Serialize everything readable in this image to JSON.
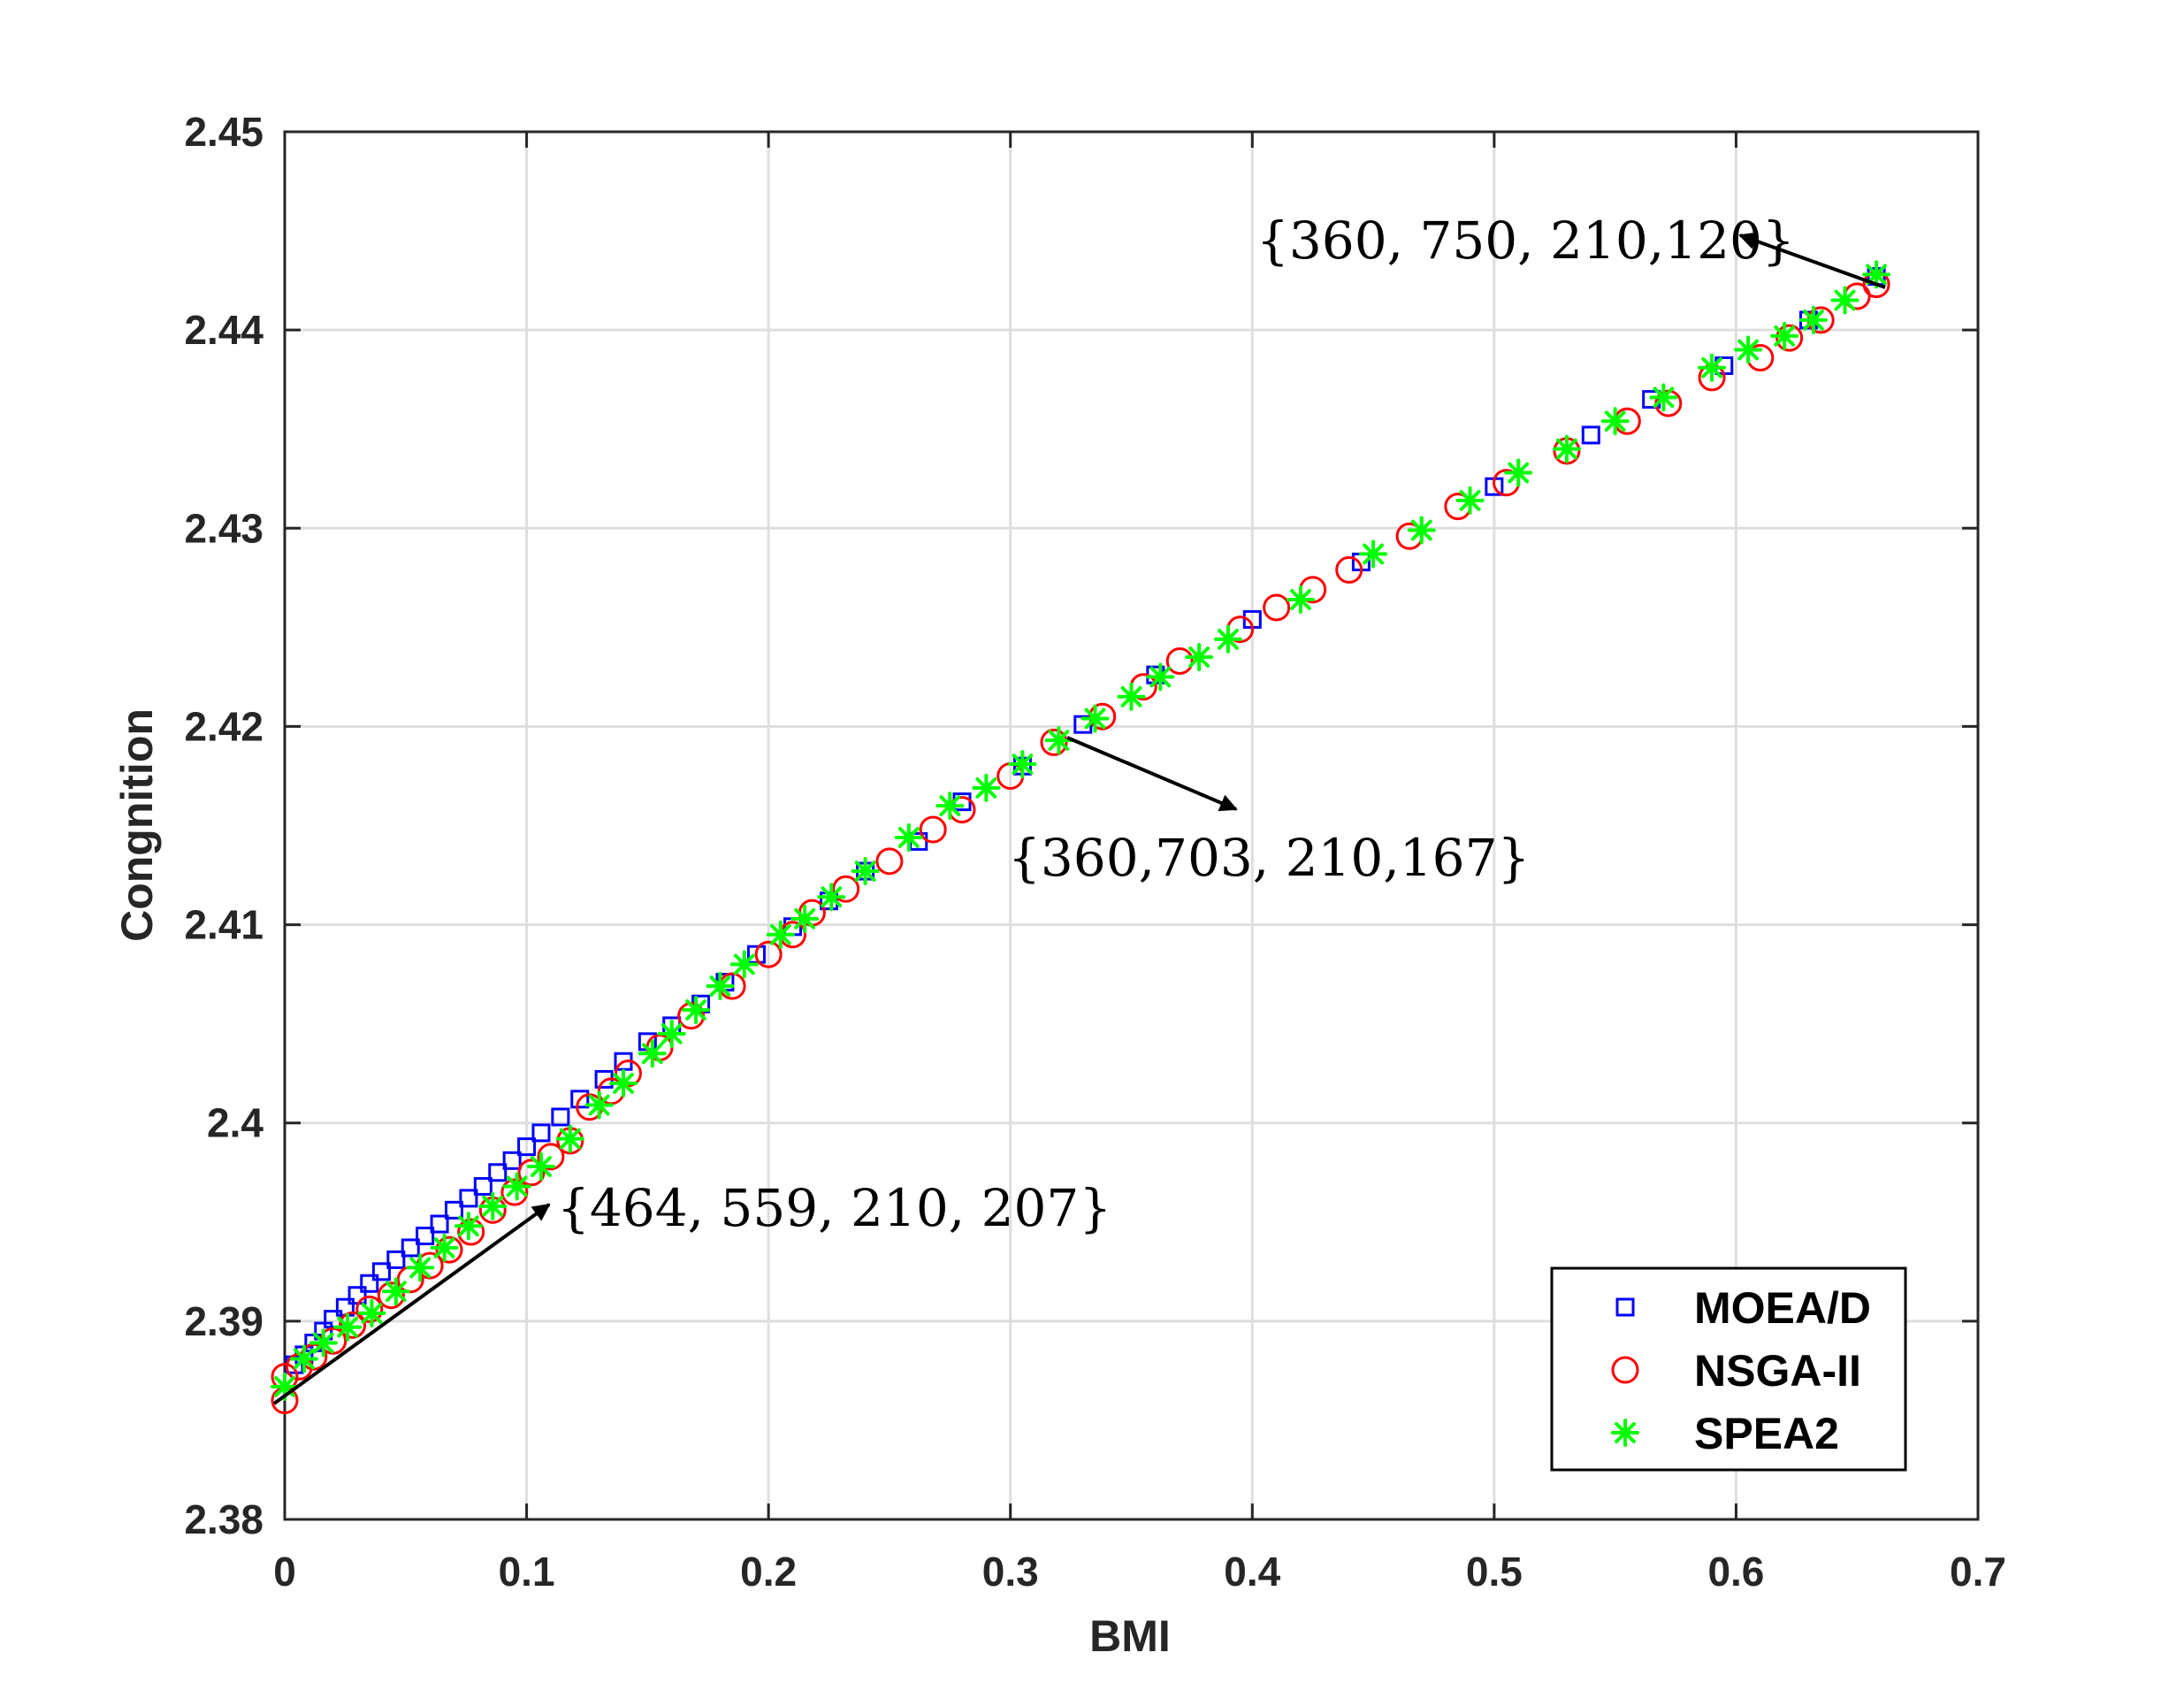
{
  "chart_data": {
    "type": "scatter",
    "xlabel": "BMI",
    "ylabel": "Congnition",
    "xlim": [
      0,
      0.7
    ],
    "ylim": [
      2.38,
      2.45
    ],
    "xticks": [
      0,
      0.1,
      0.2,
      0.3,
      0.4,
      0.5,
      0.6,
      0.7
    ],
    "yticks": [
      2.38,
      2.39,
      2.4,
      2.41,
      2.42,
      2.43,
      2.44,
      2.45
    ],
    "xtick_labels": [
      "0",
      "0.1",
      "0.2",
      "0.3",
      "0.4",
      "0.5",
      "0.6",
      "0.7"
    ],
    "ytick_labels": [
      "2.38",
      "2.39",
      "2.4",
      "2.41",
      "2.42",
      "2.43",
      "2.44",
      "2.45"
    ],
    "grid": true,
    "legend_position": "bottom-right",
    "series": [
      {
        "name": "MOEA/D",
        "marker": "square",
        "color": "#0000ff",
        "points": [
          [
            0.004,
            2.3878
          ],
          [
            0.008,
            2.3883
          ],
          [
            0.012,
            2.3889
          ],
          [
            0.016,
            2.3895
          ],
          [
            0.02,
            2.3901
          ],
          [
            0.025,
            2.3907
          ],
          [
            0.03,
            2.3913
          ],
          [
            0.035,
            2.3919
          ],
          [
            0.04,
            2.3925
          ],
          [
            0.046,
            2.3931
          ],
          [
            0.052,
            2.3937
          ],
          [
            0.058,
            2.3943
          ],
          [
            0.064,
            2.3949
          ],
          [
            0.07,
            2.3956
          ],
          [
            0.076,
            2.3962
          ],
          [
            0.082,
            2.3968
          ],
          [
            0.088,
            2.3975
          ],
          [
            0.094,
            2.3981
          ],
          [
            0.1,
            2.3988
          ],
          [
            0.106,
            2.3995
          ],
          [
            0.114,
            2.4003
          ],
          [
            0.122,
            2.4012
          ],
          [
            0.132,
            2.4022
          ],
          [
            0.14,
            2.4031
          ],
          [
            0.15,
            2.4041
          ],
          [
            0.16,
            2.4049
          ],
          [
            0.172,
            2.406
          ],
          [
            0.182,
            2.4071
          ],
          [
            0.195,
            2.4085
          ],
          [
            0.21,
            2.4099
          ],
          [
            0.225,
            2.4112
          ],
          [
            0.24,
            2.4127
          ],
          [
            0.262,
            2.4142
          ],
          [
            0.28,
            2.4162
          ],
          [
            0.305,
            2.418
          ],
          [
            0.33,
            2.4201
          ],
          [
            0.36,
            2.4226
          ],
          [
            0.4,
            2.4254
          ],
          [
            0.445,
            2.4283
          ],
          [
            0.5,
            2.4321
          ],
          [
            0.54,
            2.4347
          ],
          [
            0.565,
            2.4365
          ],
          [
            0.595,
            2.4382
          ],
          [
            0.63,
            2.4405
          ],
          [
            0.658,
            2.4427
          ]
        ]
      },
      {
        "name": "NSGA-II",
        "marker": "circle",
        "color": "#ff0000",
        "points": [
          [
            0.0,
            2.386
          ],
          [
            0.0,
            2.3872
          ],
          [
            0.006,
            2.3877
          ],
          [
            0.012,
            2.3882
          ],
          [
            0.02,
            2.389
          ],
          [
            0.028,
            2.3898
          ],
          [
            0.035,
            2.3906
          ],
          [
            0.044,
            2.3913
          ],
          [
            0.052,
            2.3921
          ],
          [
            0.06,
            2.3928
          ],
          [
            0.068,
            2.3936
          ],
          [
            0.077,
            2.3945
          ],
          [
            0.086,
            2.3956
          ],
          [
            0.095,
            2.3965
          ],
          [
            0.102,
            2.3975
          ],
          [
            0.11,
            2.3983
          ],
          [
            0.118,
            2.3991
          ],
          [
            0.126,
            2.4008
          ],
          [
            0.135,
            2.4016
          ],
          [
            0.142,
            2.4025
          ],
          [
            0.155,
            2.4038
          ],
          [
            0.168,
            2.4054
          ],
          [
            0.185,
            2.4069
          ],
          [
            0.2,
            2.4085
          ],
          [
            0.21,
            2.4095
          ],
          [
            0.218,
            2.4106
          ],
          [
            0.232,
            2.4118
          ],
          [
            0.25,
            2.4132
          ],
          [
            0.268,
            2.4148
          ],
          [
            0.28,
            2.4158
          ],
          [
            0.3,
            2.4175
          ],
          [
            0.318,
            2.4192
          ],
          [
            0.338,
            2.4205
          ],
          [
            0.355,
            2.422
          ],
          [
            0.37,
            2.4233
          ],
          [
            0.395,
            2.4249
          ],
          [
            0.41,
            2.426
          ],
          [
            0.425,
            2.4269
          ],
          [
            0.44,
            2.4279
          ],
          [
            0.465,
            2.4296
          ],
          [
            0.485,
            2.4311
          ],
          [
            0.505,
            2.4323
          ],
          [
            0.53,
            2.4339
          ],
          [
            0.555,
            2.4354
          ],
          [
            0.572,
            2.4363
          ],
          [
            0.59,
            2.4376
          ],
          [
            0.61,
            2.4386
          ],
          [
            0.622,
            2.4396
          ],
          [
            0.635,
            2.4405
          ],
          [
            0.65,
            2.4417
          ],
          [
            0.658,
            2.4423
          ]
        ]
      },
      {
        "name": "SPEA2",
        "marker": "star",
        "color": "#00ff00",
        "points": [
          [
            0.0,
            2.3867
          ],
          [
            0.008,
            2.3881
          ],
          [
            0.016,
            2.3889
          ],
          [
            0.026,
            2.3897
          ],
          [
            0.036,
            2.3904
          ],
          [
            0.046,
            2.3915
          ],
          [
            0.056,
            2.3927
          ],
          [
            0.066,
            2.3937
          ],
          [
            0.076,
            2.3948
          ],
          [
            0.086,
            2.3958
          ],
          [
            0.096,
            2.3968
          ],
          [
            0.106,
            2.3978
          ],
          [
            0.118,
            2.3992
          ],
          [
            0.13,
            2.4009
          ],
          [
            0.14,
            2.402
          ],
          [
            0.152,
            2.4035
          ],
          [
            0.16,
            2.4045
          ],
          [
            0.17,
            2.4057
          ],
          [
            0.18,
            2.4069
          ],
          [
            0.19,
            2.408
          ],
          [
            0.205,
            2.4095
          ],
          [
            0.215,
            2.4103
          ],
          [
            0.226,
            2.4114
          ],
          [
            0.24,
            2.4127
          ],
          [
            0.258,
            2.4144
          ],
          [
            0.275,
            2.416
          ],
          [
            0.29,
            2.4169
          ],
          [
            0.305,
            2.4181
          ],
          [
            0.32,
            2.4193
          ],
          [
            0.335,
            2.4204
          ],
          [
            0.35,
            2.4215
          ],
          [
            0.362,
            2.4225
          ],
          [
            0.378,
            2.4235
          ],
          [
            0.39,
            2.4244
          ],
          [
            0.42,
            2.4264
          ],
          [
            0.45,
            2.4287
          ],
          [
            0.47,
            2.4299
          ],
          [
            0.49,
            2.4314
          ],
          [
            0.51,
            2.4328
          ],
          [
            0.53,
            2.434
          ],
          [
            0.55,
            2.4354
          ],
          [
            0.57,
            2.4366
          ],
          [
            0.59,
            2.4381
          ],
          [
            0.605,
            2.439
          ],
          [
            0.62,
            2.4397
          ],
          [
            0.632,
            2.4405
          ],
          [
            0.645,
            2.4415
          ],
          [
            0.658,
            2.4428
          ]
        ]
      }
    ],
    "annotations": [
      {
        "text": "{360, 750, 210,120}",
        "point": [
          0.662,
          2.4423
        ]
      },
      {
        "text": "{360,703, 210,167}",
        "point": [
          0.322,
          2.4191
        ]
      },
      {
        "text": "{464, 559, 210, 207}",
        "point": [
          0.0,
          2.386
        ]
      }
    ]
  }
}
